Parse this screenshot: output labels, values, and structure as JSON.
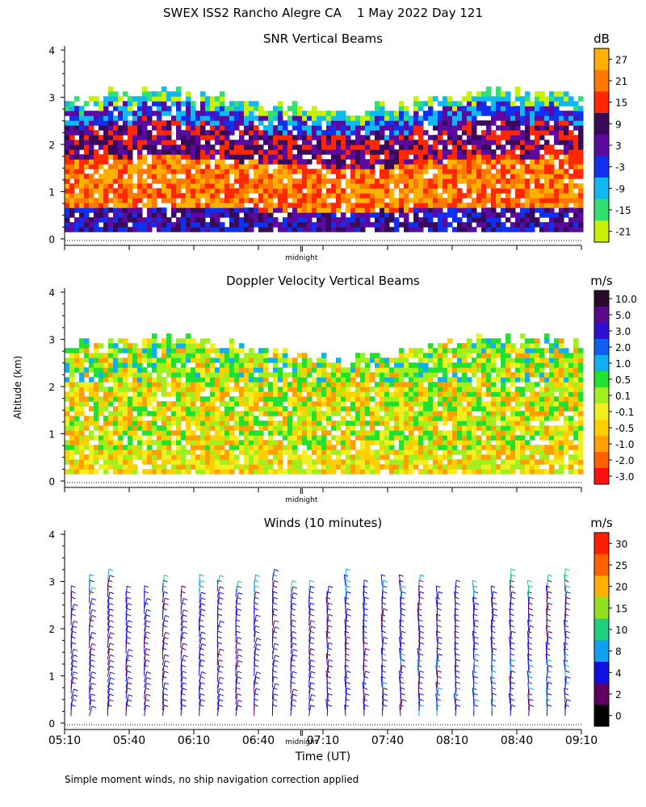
{
  "header": {
    "title": "SWEX ISS2 Rancho Alegre CA    1 May 2022 Day 121"
  },
  "axes": {
    "ylabel": "Altitude (km)",
    "xlabel": "Time (UT)",
    "midnight_label": "midnight",
    "footer_note": "Simple moment winds, no ship navigation correction applied"
  },
  "chart_data": [
    {
      "type": "heatmap",
      "title": "SNR Vertical Beams",
      "units": "dB",
      "xlabel": "Time (UT)",
      "ylabel": "Altitude (km)",
      "xlim": [
        "05:10",
        "09:10"
      ],
      "ylim": [
        0,
        4
      ],
      "yticks": [
        0,
        1,
        2,
        3,
        4
      ],
      "colorbar": {
        "labels": [
          "27",
          "21",
          "15",
          "9",
          "3",
          "-3",
          "-9",
          "-15",
          "-21"
        ],
        "colors": [
          "#ffb000",
          "#ff7800",
          "#ff2800",
          "#3a0a5a",
          "#5a0aa0",
          "#1030f0",
          "#10b8f0",
          "#30e070",
          "#c8f000"
        ]
      }
    },
    {
      "type": "heatmap",
      "title": "Doppler Velocity Vertical Beams",
      "units": "m/s",
      "xlabel": "Time (UT)",
      "ylabel": "Altitude (km)",
      "xlim": [
        "05:10",
        "09:10"
      ],
      "ylim": [
        0,
        4
      ],
      "yticks": [
        0,
        1,
        2,
        3,
        4
      ],
      "colorbar": {
        "labels": [
          "10.0",
          "5.0",
          "3.0",
          "2.0",
          "1.0",
          "0.5",
          "0.1",
          "-0.1",
          "-0.5",
          "-1.0",
          "-2.0",
          "-3.0"
        ],
        "colors": [
          "#2a0a2a",
          "#5a0a8a",
          "#3010d0",
          "#1060f0",
          "#10b0f0",
          "#20e030",
          "#a0f020",
          "#f0f020",
          "#ffd000",
          "#ffa000",
          "#ff6000",
          "#ff1010"
        ]
      }
    },
    {
      "type": "wind_barbs",
      "title": "Winds (10 minutes)",
      "units": "m/s",
      "xlabel": "Time (UT)",
      "ylabel": "Altitude (km)",
      "xlim": [
        "05:10",
        "09:10"
      ],
      "ylim": [
        0,
        4
      ],
      "yticks": [
        0,
        1,
        2,
        3,
        4
      ],
      "xticks": [
        "05:10",
        "05:40",
        "06:10",
        "06:40",
        "07:10",
        "07:40",
        "08:10",
        "08:40",
        "09:10"
      ],
      "colorbar": {
        "labels": [
          "30",
          "25",
          "20",
          "15",
          "10",
          "8",
          "4",
          "2",
          "0"
        ],
        "colors": [
          "#ff2000",
          "#ff6000",
          "#ffb000",
          "#90e020",
          "#20d080",
          "#10a0f0",
          "#1010e0",
          "#600060",
          "#000000"
        ]
      }
    }
  ]
}
